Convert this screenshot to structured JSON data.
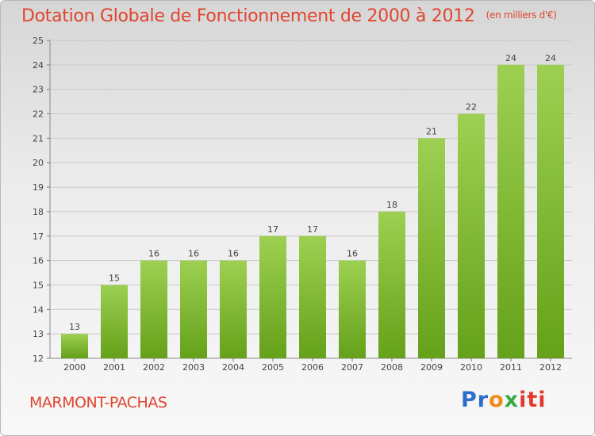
{
  "chart_data": {
    "type": "bar",
    "title": "Dotation Globale de Fonctionnement de 2000 à 2012",
    "subtitle": "(en milliers d'€)",
    "categories": [
      "2000",
      "2001",
      "2002",
      "2003",
      "2004",
      "2005",
      "2006",
      "2007",
      "2008",
      "2009",
      "2010",
      "2011",
      "2012"
    ],
    "values": [
      13,
      15,
      16,
      16,
      16,
      17,
      17,
      16,
      18,
      21,
      22,
      24,
      24
    ],
    "ylim": [
      12,
      25
    ],
    "yticks": [
      12,
      13,
      14,
      15,
      16,
      17,
      18,
      19,
      20,
      21,
      22,
      23,
      24,
      25
    ],
    "grid": true,
    "colors": {
      "bar_top": "#9dd052",
      "bar_bottom": "#65a11a",
      "label": "#444444",
      "grid": "#c8c8c8"
    }
  },
  "commune": "MARMONT-PACHAS",
  "logo": {
    "text": "Proxiti",
    "parts": [
      "Pr",
      "o",
      "x",
      "iti"
    ]
  }
}
